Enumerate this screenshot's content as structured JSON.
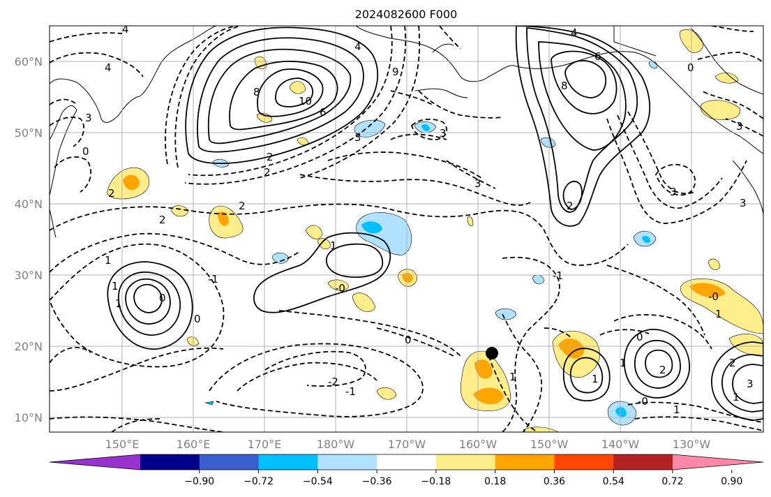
{
  "title": "2024082600 F000",
  "map": {
    "lat_labels": [
      "10°N",
      "20°N",
      "30°N",
      "40°N",
      "50°N",
      "60°N"
    ],
    "lon_labels": [
      "150°E",
      "160°E",
      "170°E",
      "180°W",
      "170°W",
      "160°W",
      "150°W",
      "140°W",
      "130°W"
    ],
    "contour_labels": [
      "4",
      "4",
      "4",
      "8",
      "10",
      "6",
      "2",
      "2",
      "3",
      "3",
      "9",
      "4",
      "6",
      "8",
      "0",
      "3",
      "3",
      "0",
      "3",
      "3",
      "3",
      "2",
      "2",
      "2",
      "2",
      "1",
      "1",
      "-1",
      "-0",
      "0",
      "0",
      "1",
      "1",
      "0",
      "-1",
      "1",
      "2",
      "1",
      "0",
      "-1",
      "-2",
      "-0",
      "1",
      "1",
      "3",
      "2",
      "1",
      "-0",
      "1"
    ],
    "marker": "black-dot",
    "colors": {
      "grid": "#b0b0b0",
      "contour": "#000000",
      "coast": "#000000"
    }
  },
  "colorbar": {
    "ticks": [
      "−0.90",
      "−0.72",
      "−0.54",
      "−0.36",
      "−0.18",
      "0.18",
      "0.36",
      "0.54",
      "0.72",
      "0.90"
    ],
    "colors": [
      "#9932cc",
      "#00008b",
      "#3a5fcd",
      "#00bfff",
      "#b0e2ff",
      "#ffffff",
      "#ffec8b",
      "#ffa500",
      "#ff4500",
      "#b22222",
      "#ff88aa"
    ]
  }
}
